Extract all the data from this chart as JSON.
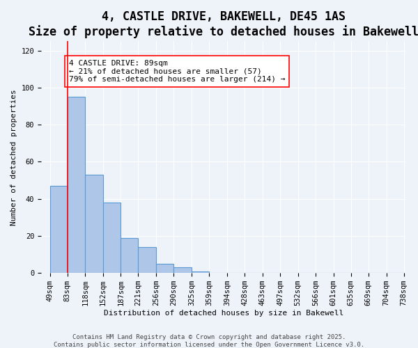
{
  "title": "4, CASTLE DRIVE, BAKEWELL, DE45 1AS",
  "subtitle": "Size of property relative to detached houses in Bakewell",
  "xlabel": "Distribution of detached houses by size in Bakewell",
  "ylabel": "Number of detached properties",
  "bar_values": [
    47,
    95,
    53,
    38,
    19,
    14,
    5,
    3,
    1,
    0,
    0,
    0,
    0,
    0,
    0,
    0,
    0,
    0,
    0,
    0
  ],
  "bin_edges": [
    49,
    83,
    118,
    152,
    187,
    221,
    256,
    290,
    325,
    359,
    394,
    428,
    463,
    497,
    532,
    566,
    601,
    635,
    669,
    704,
    738
  ],
  "bin_labels": [
    "49sqm",
    "83sqm",
    "118sqm",
    "152sqm",
    "187sqm",
    "221sqm",
    "256sqm",
    "290sqm",
    "325sqm",
    "359sqm",
    "394sqm",
    "428sqm",
    "463sqm",
    "497sqm",
    "532sqm",
    "566sqm",
    "601sqm",
    "635sqm",
    "669sqm",
    "704sqm",
    "738sqm"
  ],
  "bar_color": "#aec6e8",
  "bar_edge_color": "#5b9bd5",
  "red_line_x": 1,
  "ylim": [
    0,
    125
  ],
  "yticks": [
    0,
    20,
    40,
    60,
    80,
    100,
    120
  ],
  "annotation_text": "4 CASTLE DRIVE: 89sqm\n← 21% of detached houses are smaller (57)\n79% of semi-detached houses are larger (214) →",
  "background_color": "#eef2f9",
  "footer1": "Contains HM Land Registry data © Crown copyright and database right 2025.",
  "footer2": "Contains public sector information licensed under the Open Government Licence v3.0.",
  "title_fontsize": 12,
  "subtitle_fontsize": 10,
  "axis_label_fontsize": 8,
  "tick_fontsize": 7.5,
  "footer_fontsize": 6.5
}
